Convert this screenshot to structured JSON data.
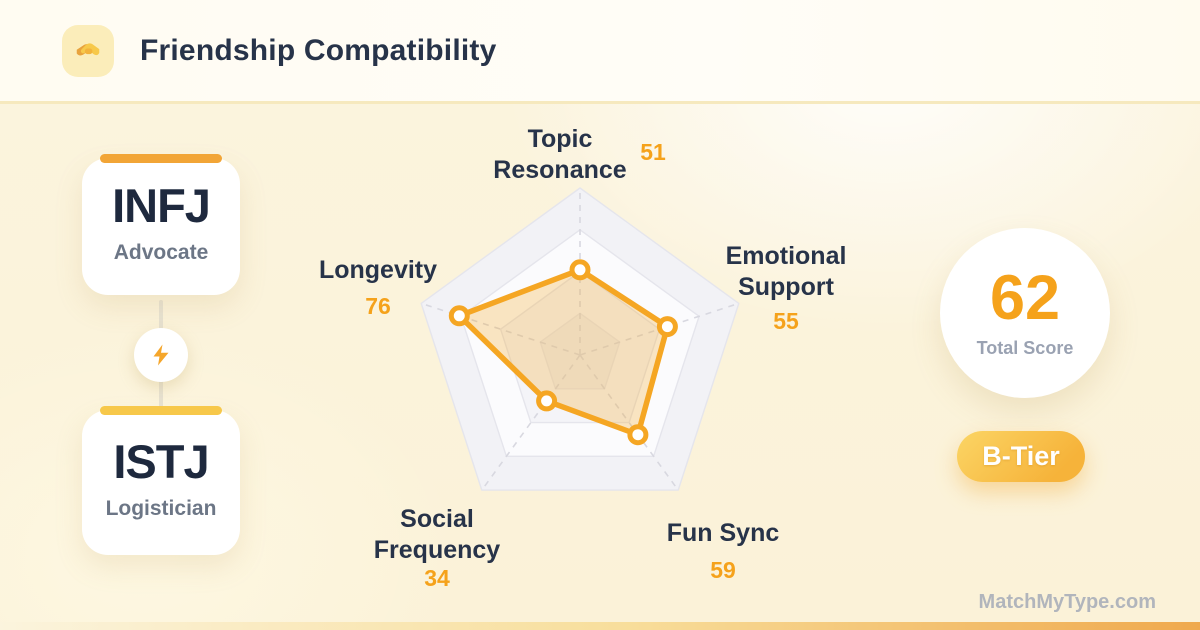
{
  "header": {
    "title": "Friendship Compatibility",
    "icon": "handshake-icon"
  },
  "person1": {
    "type": "INFJ",
    "name": "Advocate",
    "accent": "#F2A536"
  },
  "person2": {
    "type": "ISTJ",
    "name": "Logistician",
    "accent": "#F7C84A"
  },
  "connector": {
    "icon": "lightning-bolt-icon"
  },
  "chart_data": {
    "type": "radar",
    "categories": [
      "Topic Resonance",
      "Emotional Support",
      "Fun Sync",
      "Social Frequency",
      "Longevity"
    ],
    "values": [
      51,
      55,
      59,
      34,
      76
    ],
    "max": 100,
    "rings": 4,
    "grid": "pentagon, 4 alternating split bands, dashed radial axes",
    "legend": "none",
    "accent": "#F5A623",
    "fill": "rgba(245,166,35,0.27)"
  },
  "score": {
    "value": "62",
    "label": "Total Score"
  },
  "tier": {
    "label": "B-Tier"
  },
  "watermark": "MatchMyType.com",
  "colors": {
    "text_dark": "#273349",
    "text_gray": "#6C7686",
    "value_orange": "#F5A21B",
    "header_divider": "#F6E9BE"
  }
}
